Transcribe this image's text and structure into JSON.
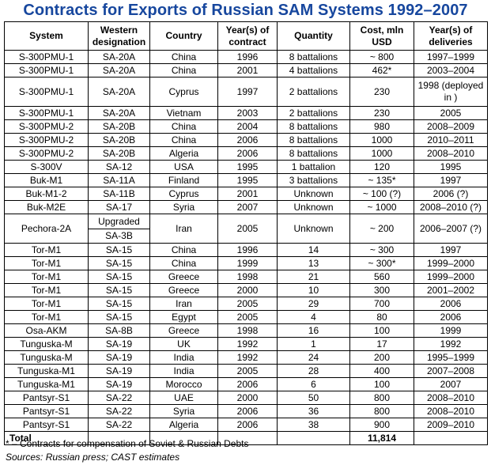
{
  "title": "Contracts for Exports of Russian SAM Systems 1992–2007",
  "headers": {
    "system": "System",
    "western": "Western designation",
    "country": "Country",
    "year_contract": "Year(s) of contract",
    "quantity": "Quantity",
    "cost": "Cost, mln USD",
    "year_deliveries": "Year(s) of deliveries"
  },
  "rows": [
    {
      "system": "S-300PMU-1",
      "western": "SA-20A",
      "country": "China",
      "year": "1996",
      "qty": "8 battalions",
      "cost": "~ 800",
      "delivery": "1997–1999"
    },
    {
      "system": "S-300PMU-1",
      "western": "SA-20A",
      "country": "China",
      "year": "2001",
      "qty": "4 battalions",
      "cost": "462*",
      "delivery": "2003–2004"
    },
    {
      "system": "S-300PMU-1",
      "western": "SA-20A",
      "country": "Cyprus",
      "year": "1997",
      "qty": "2 battalions",
      "cost": "230",
      "delivery": "1998 (deployed in )"
    },
    {
      "system": "S-300PMU-1",
      "western": "SA-20A",
      "country": "Vietnam",
      "year": "2003",
      "qty": "2 battalions",
      "cost": "230",
      "delivery": "2005"
    },
    {
      "system": "S-300PMU-2",
      "western": "SA-20B",
      "country": "China",
      "year": "2004",
      "qty": "8 battalions",
      "cost": "980",
      "delivery": "2008–2009"
    },
    {
      "system": "S-300PMU-2",
      "western": "SA-20B",
      "country": "China",
      "year": "2006",
      "qty": "8 battalions",
      "cost": "1000",
      "delivery": "2010–2011"
    },
    {
      "system": "S-300PMU-2",
      "western": "SA-20B",
      "country": "Algeria",
      "year": "2006",
      "qty": "8 battalions",
      "cost": "1000",
      "delivery": "2008–2010"
    },
    {
      "system": "S-300V",
      "western": "SA-12",
      "country": "USA",
      "year": "1995",
      "qty": "1 battalion",
      "cost": "120",
      "delivery": "1995"
    },
    {
      "system": "Buk-M1",
      "western": "SA-11A",
      "country": "Finland",
      "year": "1995",
      "qty": "3 battalions",
      "cost": "~ 135*",
      "delivery": "1997"
    },
    {
      "system": "Buk-M1-2",
      "western": "SA-11B",
      "country": "Cyprus",
      "year": "2001",
      "qty": "Unknown",
      "cost": "~ 100 (?)",
      "delivery": "2006 (?)"
    },
    {
      "system": "Buk-M2E",
      "western": "SA-17",
      "country": "Syria",
      "year": "2007",
      "qty": "Unknown",
      "cost": "~ 1000",
      "delivery": "2008–2010 (?)"
    },
    {
      "system": "Pechora-2A",
      "western_top": "Upgraded",
      "western": "SA-3B",
      "country": "Iran",
      "year": "2005",
      "qty": "Unknown",
      "cost": "~ 200",
      "delivery": "2006–2007 (?)"
    },
    {
      "system": "Tor-M1",
      "western": "SA-15",
      "country": "China",
      "year": "1996",
      "qty": "14",
      "cost": "~ 300",
      "delivery": "1997"
    },
    {
      "system": "Tor-M1",
      "western": "SA-15",
      "country": "China",
      "year": "1999",
      "qty": "13",
      "cost": "~ 300*",
      "delivery": "1999–2000"
    },
    {
      "system": "Tor-M1",
      "western": "SA-15",
      "country": "Greece",
      "year": "1998",
      "qty": "21",
      "cost": "560",
      "delivery": "1999–2000"
    },
    {
      "system": "Tor-M1",
      "western": "SA-15",
      "country": "Greece",
      "year": "2000",
      "qty": "10",
      "cost": "300",
      "delivery": "2001–2002"
    },
    {
      "system": "Tor-M1",
      "western": "SA-15",
      "country": "Iran",
      "year": "2005",
      "qty": "29",
      "cost": "700",
      "delivery": "2006"
    },
    {
      "system": "Tor-M1",
      "western": "SA-15",
      "country": "Egypt",
      "year": "2005",
      "qty": "4",
      "cost": "80",
      "delivery": "2006"
    },
    {
      "system": "Osa-AKM",
      "western": "SA-8B",
      "country": "Greece",
      "year": "1998",
      "qty": "16",
      "cost": "100",
      "delivery": "1999"
    },
    {
      "system": "Tunguska-M",
      "western": "SA-19",
      "country": "UK",
      "year": "1992",
      "qty": "1",
      "cost": "17",
      "delivery": "1992"
    },
    {
      "system": "Tunguska-M",
      "western": "SA-19",
      "country": "India",
      "year": "1992",
      "qty": "24",
      "cost": "200",
      "delivery": "1995–1999"
    },
    {
      "system": "Tunguska-M1",
      "western": "SA-19",
      "country": "India",
      "year": "2005",
      "qty": "28",
      "cost": "400",
      "delivery": "2007–2008"
    },
    {
      "system": "Tunguska-M1",
      "western": "SA-19",
      "country": "Morocco",
      "year": "2006",
      "qty": "6",
      "cost": "100",
      "delivery": "2007"
    },
    {
      "system": "Pantsyr-S1",
      "western": "SA-22",
      "country": "UAE",
      "year": "2000",
      "qty": "50",
      "cost": "800",
      "delivery": "2008–2010"
    },
    {
      "system": "Pantsyr-S1",
      "western": "SA-22",
      "country": "Syria",
      "year": "2006",
      "qty": "36",
      "cost": "800",
      "delivery": "2008–2010"
    },
    {
      "system": "Pantsyr-S1",
      "western": "SA-22",
      "country": "Algeria",
      "year": "2006",
      "qty": "38",
      "cost": "900",
      "delivery": "2009–2010"
    }
  ],
  "total": {
    "label": "Total",
    "cost": "11,814"
  },
  "footnote": "* – Contracts for compensation of Soviet & Russian Debts",
  "sources": "Sources: Russian press; CAST estimates"
}
